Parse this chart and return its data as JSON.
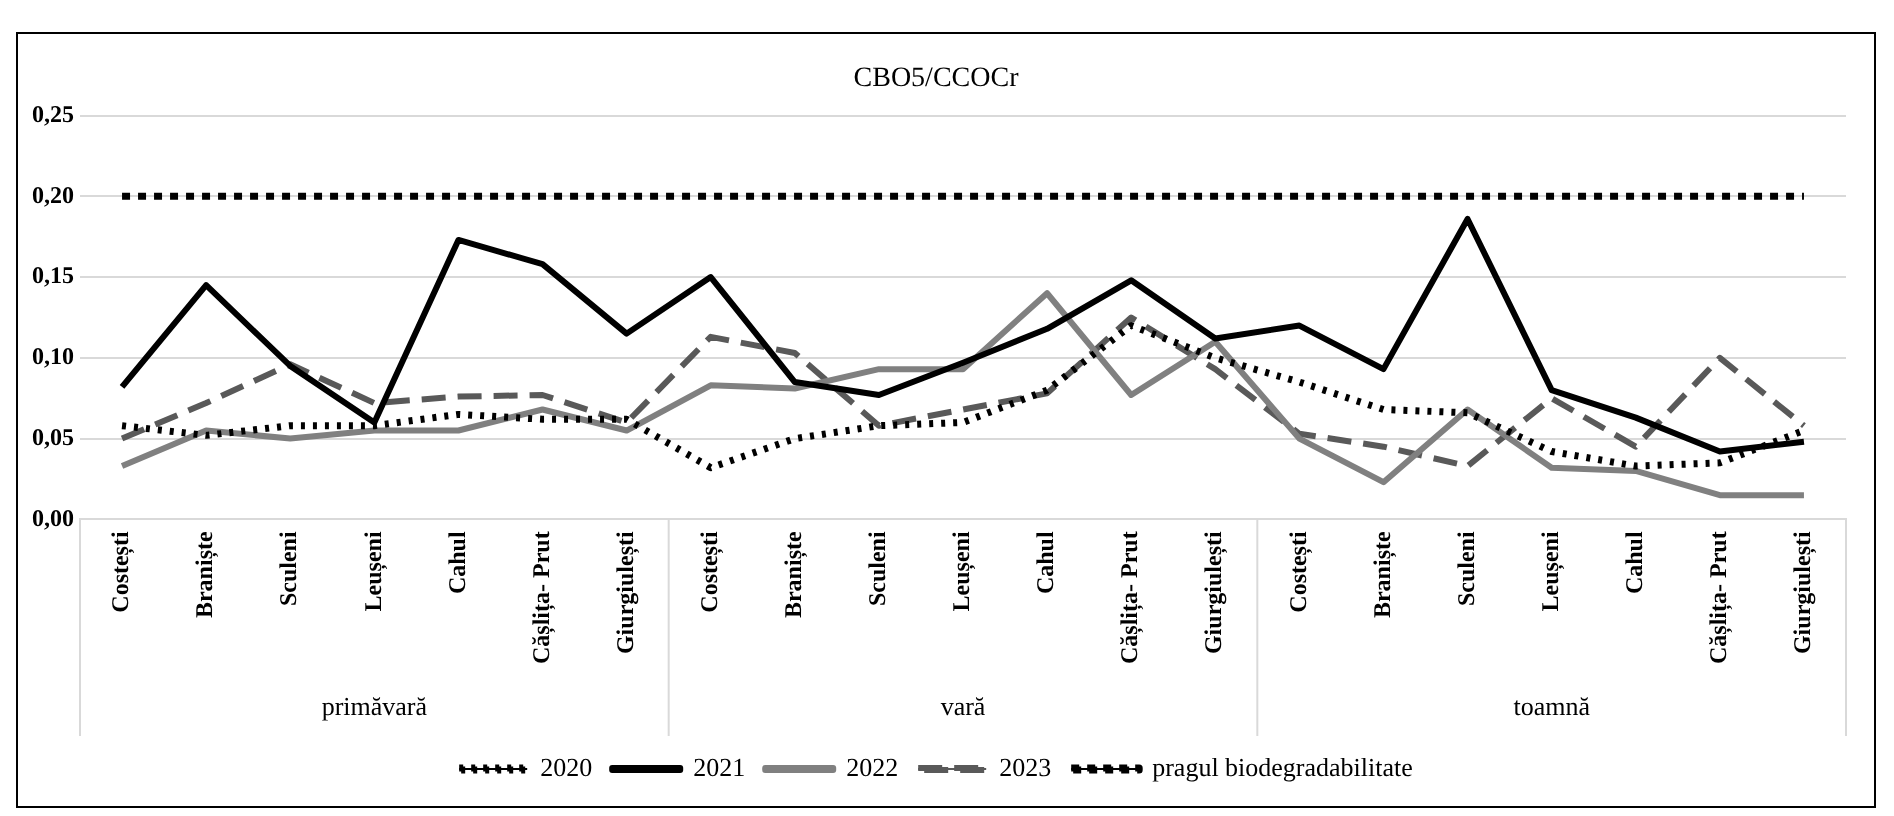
{
  "chart_data": {
    "type": "line",
    "title": "CBO5/CCOCr",
    "categories": [
      "Costești",
      "Braniște",
      "Sculeni",
      "Leușeni",
      "Cahul",
      "Cășlița- Prut",
      "Giurgiulești",
      "Costești",
      "Braniște",
      "Sculeni",
      "Leușeni",
      "Cahul",
      "Cășlița- Prut",
      "Giurgiulești",
      "Costești",
      "Braniște",
      "Sculeni",
      "Leușeni",
      "Cahul",
      "Cășlița- Prut",
      "Giurgiulești"
    ],
    "annotations": [
      "primăvară",
      "vară",
      "toamnă"
    ],
    "series": [
      {
        "name": "2020",
        "color": "#000000",
        "line_style": "dotted",
        "values": [
          0.058,
          0.052,
          0.058,
          0.058,
          0.065,
          0.062,
          0.062,
          0.032,
          0.05,
          0.058,
          0.06,
          0.08,
          0.12,
          0.1,
          0.085,
          0.068,
          0.066,
          0.042,
          0.033,
          0.035,
          0.055
        ]
      },
      {
        "name": "2021",
        "color": "#000000",
        "line_style": "solid",
        "values": [
          0.082,
          0.145,
          0.095,
          0.06,
          0.173,
          0.158,
          0.115,
          0.15,
          0.085,
          0.077,
          0.097,
          0.118,
          0.148,
          0.112,
          0.12,
          0.093,
          0.186,
          0.08,
          0.063,
          0.042,
          0.048
        ]
      },
      {
        "name": "2022",
        "color": "#808080",
        "line_style": "solid",
        "values": [
          0.033,
          0.055,
          0.05,
          0.055,
          0.055,
          0.068,
          0.055,
          0.083,
          0.081,
          0.093,
          0.093,
          0.14,
          0.077,
          0.11,
          0.05,
          0.023,
          0.068,
          0.032,
          0.03,
          0.015,
          0.015
        ]
      },
      {
        "name": "2023",
        "color": "#595959",
        "line_style": "dashed",
        "values": [
          0.05,
          0.072,
          0.096,
          0.072,
          0.076,
          0.077,
          0.06,
          0.113,
          0.103,
          0.058,
          0.068,
          0.078,
          0.125,
          0.093,
          0.053,
          0.045,
          0.033,
          0.075,
          0.045,
          0.1,
          0.058
        ]
      },
      {
        "name": "pragul biodegradabilitate",
        "color": "#000000",
        "line_style": "dotted",
        "values": [
          0.2,
          0.2,
          0.2,
          0.2,
          0.2,
          0.2,
          0.2,
          0.2,
          0.2,
          0.2,
          0.2,
          0.2,
          0.2,
          0.2,
          0.2,
          0.2,
          0.2,
          0.2,
          0.2,
          0.2,
          0.2
        ]
      }
    ],
    "ylim": [
      0,
      0.25
    ],
    "yticks": [
      {
        "value": 0,
        "label": "0,00"
      },
      {
        "value": 0.05,
        "label": "0,05"
      },
      {
        "value": 0.1,
        "label": "0,10"
      },
      {
        "value": 0.15,
        "label": "0,15"
      },
      {
        "value": 0.2,
        "label": "0,20"
      },
      {
        "value": 0.25,
        "label": "0,25"
      }
    ],
    "grid": "y",
    "legend": "bottom",
    "marker": "none"
  }
}
